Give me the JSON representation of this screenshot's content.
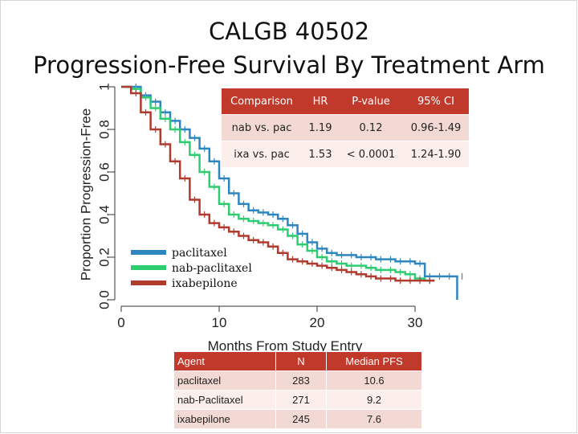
{
  "slide": {
    "title_line1": "CALGB 40502",
    "title_line2": "Progression-Free Survival By Treatment  Arm"
  },
  "hr_table": {
    "headers": [
      "Comparison",
      "HR",
      "P-value",
      "95% CI"
    ],
    "rows": [
      [
        "nab vs. pac",
        "1.19",
        "0.12",
        "0.96-1.49"
      ],
      [
        "ixa vs. pac",
        "1.53",
        "< 0.0001",
        "1.24-1.90"
      ]
    ]
  },
  "pfs_table": {
    "headers": [
      "Agent",
      "N",
      "Median PFS"
    ],
    "rows": [
      [
        "paclitaxel",
        "283",
        "10.6"
      ],
      [
        "nab-Paclitaxel",
        "271",
        "9.2"
      ],
      [
        "ixabepilone",
        "245",
        "7.6"
      ]
    ]
  },
  "chart_data": {
    "type": "line",
    "title": "",
    "xlabel": "Months From Study Entry",
    "ylabel": "Proportion Progression-Free",
    "xlim": [
      0,
      35
    ],
    "ylim": [
      0,
      1
    ],
    "xticks": [
      "0",
      "10",
      "20",
      "30"
    ],
    "yticks": [
      "0.0",
      "0.2",
      "0.4",
      "0.6",
      "0.8",
      "1"
    ],
    "grid": false,
    "legend_position": "bottom-left",
    "series": [
      {
        "name": "paclitaxel",
        "color": "#2e86c1",
        "x": [
          0,
          1,
          2,
          3,
          4,
          5,
          6,
          7,
          8,
          9,
          10,
          11,
          12,
          13,
          14,
          15,
          16,
          17,
          18,
          19,
          20,
          21,
          22,
          23,
          24,
          25,
          26,
          27,
          28,
          29,
          30,
          31,
          32,
          33,
          34.3,
          34.3
        ],
        "y": [
          1.0,
          1.0,
          0.96,
          0.93,
          0.88,
          0.84,
          0.8,
          0.76,
          0.71,
          0.65,
          0.57,
          0.5,
          0.45,
          0.42,
          0.41,
          0.4,
          0.38,
          0.35,
          0.31,
          0.27,
          0.24,
          0.22,
          0.21,
          0.21,
          0.2,
          0.2,
          0.19,
          0.19,
          0.18,
          0.18,
          0.17,
          0.11,
          0.11,
          0.11,
          0.11,
          0.0
        ]
      },
      {
        "name": "nab-paclitaxel",
        "color": "#2ecc71",
        "x": [
          0,
          1,
          2,
          3,
          4,
          5,
          6,
          7,
          8,
          9,
          10,
          11,
          12,
          13,
          14,
          15,
          16,
          17,
          18,
          19,
          20,
          21,
          22,
          23,
          24,
          25,
          26,
          27,
          28,
          29,
          30,
          31,
          32
        ],
        "y": [
          1.0,
          0.99,
          0.95,
          0.9,
          0.85,
          0.8,
          0.74,
          0.68,
          0.6,
          0.53,
          0.45,
          0.4,
          0.38,
          0.37,
          0.36,
          0.35,
          0.33,
          0.3,
          0.26,
          0.23,
          0.2,
          0.18,
          0.17,
          0.16,
          0.16,
          0.15,
          0.14,
          0.14,
          0.13,
          0.12,
          0.1,
          0.09,
          0.09
        ]
      },
      {
        "name": "ixabepilone",
        "color": "#b03a2e",
        "x": [
          0,
          1,
          2,
          3,
          4,
          5,
          6,
          7,
          8,
          9,
          10,
          11,
          12,
          13,
          14,
          15,
          16,
          17,
          18,
          19,
          20,
          21,
          22,
          23,
          24,
          25,
          26,
          27,
          28,
          29,
          30,
          31,
          32
        ],
        "y": [
          1.0,
          0.97,
          0.88,
          0.8,
          0.73,
          0.65,
          0.57,
          0.47,
          0.4,
          0.36,
          0.34,
          0.32,
          0.3,
          0.28,
          0.27,
          0.25,
          0.22,
          0.19,
          0.18,
          0.17,
          0.16,
          0.15,
          0.14,
          0.13,
          0.12,
          0.11,
          0.1,
          0.1,
          0.09,
          0.09,
          0.09,
          0.09,
          0.09
        ]
      }
    ]
  }
}
